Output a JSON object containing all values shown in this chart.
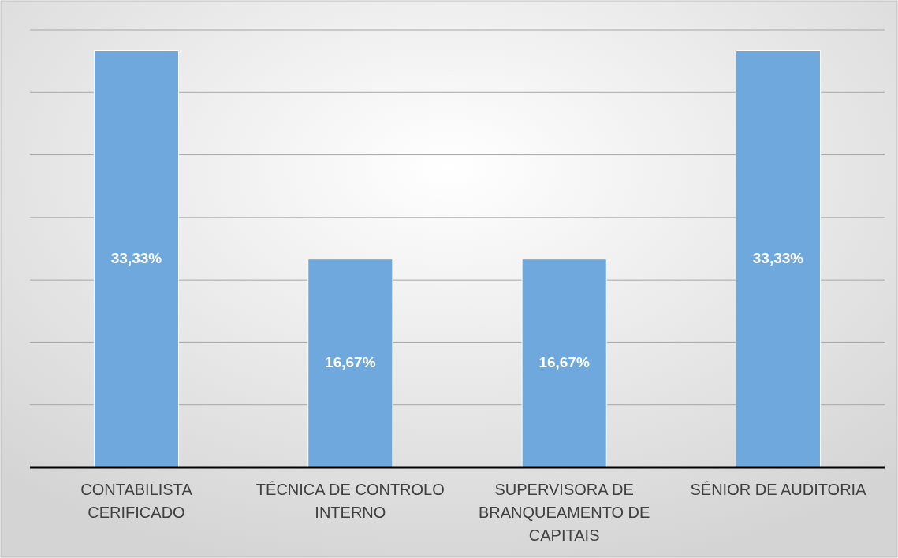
{
  "chart_data": {
    "type": "bar",
    "categories": [
      "CONTABILISTA CERIFICADO",
      "TÉCNICA DE CONTROLO INTERNO",
      "SUPERVISORA DE BRANQUEAMENTO DE CAPITAIS",
      "SÉNIOR DE AUDITORIA"
    ],
    "values": [
      33.33,
      16.67,
      16.67,
      33.33
    ],
    "value_labels": [
      "33,33%",
      "16,67%",
      "16,67%",
      "33,33%"
    ],
    "color": "#6fa8dc",
    "ylim": [
      0,
      35
    ],
    "yticks": [
      {
        "value": 0,
        "label": null
      },
      {
        "value": 5,
        "label": null
      },
      {
        "value": 10,
        "label": null
      },
      {
        "value": 15,
        "label": null
      },
      {
        "value": 20,
        "label": null
      },
      {
        "value": 25,
        "label": null
      },
      {
        "value": 30,
        "label": null
      },
      {
        "value": 35,
        "label": null
      }
    ],
    "tick_labels": "x",
    "grid": "y"
  }
}
